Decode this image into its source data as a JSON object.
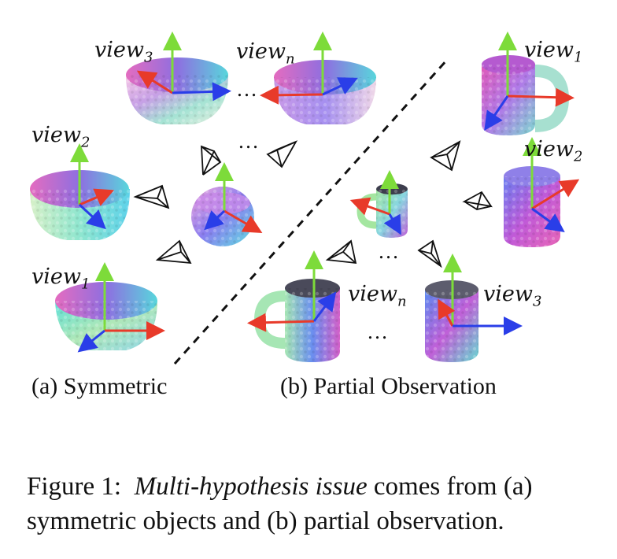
{
  "view_labels": {
    "sym_view3": "view",
    "sym_view3_sub": "3",
    "sym_viewn": "view",
    "sym_viewn_sub": "n",
    "sym_view2": "view",
    "sym_view2_sub": "2",
    "sym_view1": "view",
    "sym_view1_sub": "1",
    "par_view1": "view",
    "par_view1_sub": "1",
    "par_view2": "view",
    "par_view2_sub": "2",
    "par_viewn": "view",
    "par_viewn_sub": "n",
    "par_view3": "view",
    "par_view3_sub": "3"
  },
  "ellipsis": "…",
  "subfigure_labels": {
    "a": "(a) Symmetric",
    "b": "(b) Partial Observation"
  },
  "caption": {
    "prefix": "Figure 1:",
    "italic": "Multi-hypothesis issue",
    "line1_rest": "comes from (a)",
    "line2": "symmetric objects and (b) partial observation."
  },
  "colors": {
    "axis_green": "#7ddb3a",
    "axis_red": "#e83a2a",
    "axis_blue": "#2a3ee8"
  }
}
